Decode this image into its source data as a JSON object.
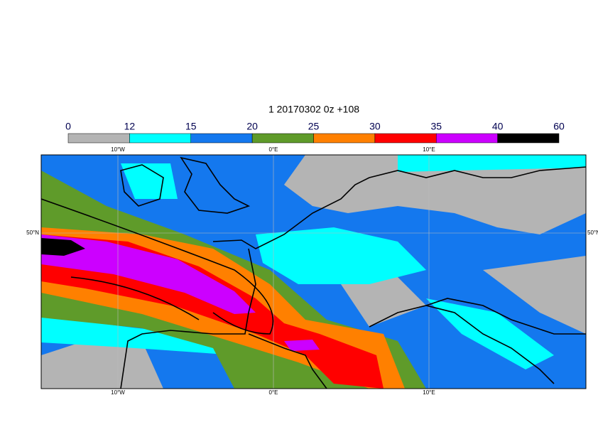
{
  "title": "1 20170302 0z +108",
  "colorbar": {
    "bounds": [
      0,
      12,
      15,
      20,
      25,
      30,
      35,
      40,
      60
    ],
    "colors": [
      "#b4b4b4",
      "#00ffff",
      "#1478ee",
      "#5f9b2a",
      "#ff8000",
      "#ff0000",
      "#cc00ff",
      "#000000"
    ]
  },
  "map": {
    "lon_labels": [
      "10°W",
      "0°E",
      "10°E"
    ],
    "lat_labels": [
      "50°N"
    ]
  }
}
